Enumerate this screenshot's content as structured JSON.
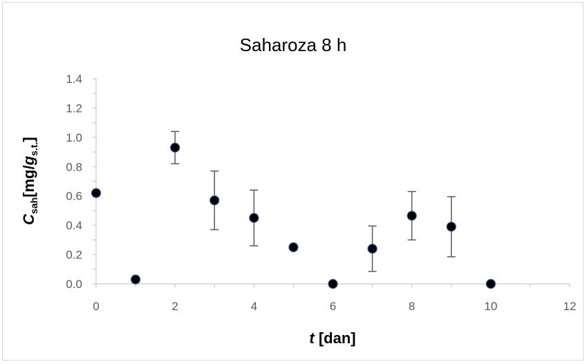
{
  "chart_data": {
    "type": "scatter",
    "title": "Saharoza 8 h",
    "xlabel": {
      "italic": "t",
      "rest": " [dan]"
    },
    "ylabel": {
      "italic": "C",
      "sub1": "sah",
      "mid": "[mg/",
      "italic2": "g",
      "sub2": "s.t.",
      "end": "]"
    },
    "xlim": [
      0,
      12
    ],
    "ylim": [
      0,
      1.4
    ],
    "x_ticks": [
      0,
      2,
      4,
      6,
      8,
      10,
      12
    ],
    "y_ticks": [
      "0.0",
      "0.2",
      "0.4",
      "0.6",
      "0.8",
      "1.0",
      "1.2",
      "1.4"
    ],
    "x_minor_step": 1,
    "y_minor_step": 0.1,
    "grid": false,
    "legend": "none",
    "marker_color": "#000000",
    "marker_edge_color": "#2f5597",
    "errorbar_color": "#595959",
    "axis_color": "#bfbfbf",
    "points": [
      {
        "x": 0,
        "y": 0.62,
        "err": 0
      },
      {
        "x": 1,
        "y": 0.03,
        "err": 0
      },
      {
        "x": 2,
        "y": 0.93,
        "err": 0.11
      },
      {
        "x": 3,
        "y": 0.57,
        "err": 0.2
      },
      {
        "x": 4,
        "y": 0.45,
        "err": 0.19
      },
      {
        "x": 5,
        "y": 0.25,
        "err": 0
      },
      {
        "x": 6,
        "y": 0.0,
        "err": 0
      },
      {
        "x": 7,
        "y": 0.24,
        "err": 0.155
      },
      {
        "x": 8,
        "y": 0.465,
        "err": 0.165
      },
      {
        "x": 9,
        "y": 0.39,
        "err": 0.205
      },
      {
        "x": 10,
        "y": 0.0,
        "err": 0
      }
    ]
  }
}
